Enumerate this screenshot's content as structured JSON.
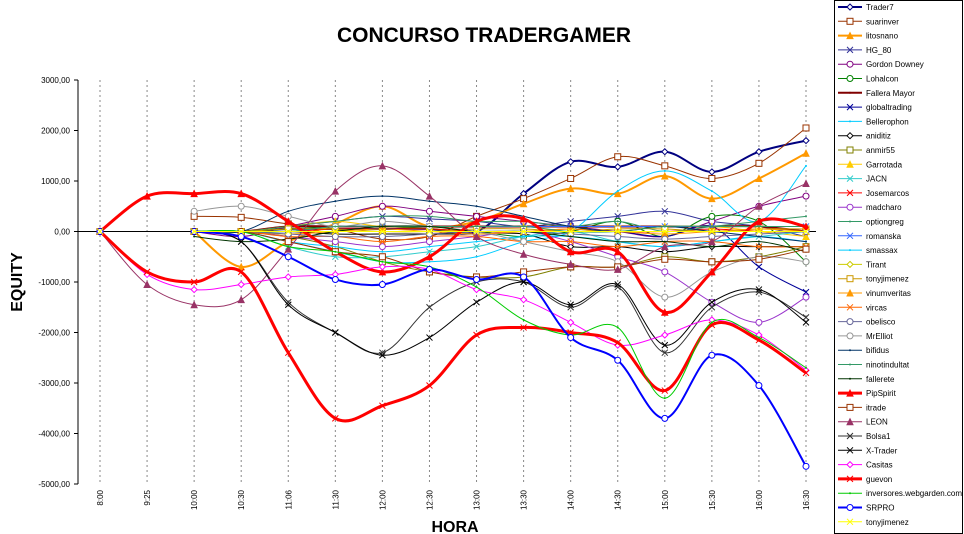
{
  "chart_data": {
    "type": "line",
    "title": "CONCURSO TRADERGAMER",
    "x_label": "HORA",
    "y_label": "EQUITY",
    "categories": [
      "8:00",
      "9:25",
      "10:00",
      "10:30",
      "11:06",
      "11:30",
      "12:00",
      "12:30",
      "13:00",
      "13:30",
      "14:00",
      "14:30",
      "15:00",
      "15:30",
      "16:00",
      "16:30"
    ],
    "ylim": [
      -5000,
      3000
    ],
    "yticks": [
      {
        "value": -5000,
        "label": "-5000,00"
      },
      {
        "value": -4000,
        "label": "-4000,00"
      },
      {
        "value": -3000,
        "label": "-3000,00"
      },
      {
        "value": -2000,
        "label": "-2000,00"
      },
      {
        "value": -1000,
        "label": "-1000,00"
      },
      {
        "value": 0,
        "label": "0,00"
      },
      {
        "value": 1000,
        "label": "1000,00"
      },
      {
        "value": 2000,
        "label": "2000,00"
      },
      {
        "value": 3000,
        "label": "3000,00"
      }
    ],
    "smooth": true,
    "series": [
      {
        "name": "Trader7",
        "color": "#000080",
        "marker": "diamond",
        "width": 2,
        "values": [
          0,
          null,
          0,
          0,
          50,
          50,
          50,
          50,
          0,
          750,
          1380,
          1280,
          1580,
          1180,
          1580,
          1800
        ]
      },
      {
        "name": "suarinver",
        "color": "#993300",
        "marker": "square",
        "width": 1,
        "values": [
          0,
          null,
          300,
          280,
          150,
          50,
          -150,
          -100,
          300,
          650,
          1050,
          1480,
          1300,
          1050,
          1350,
          2050
        ]
      },
      {
        "name": "litosnano",
        "color": "#ff9900",
        "marker": "triangle",
        "width": 2,
        "values": [
          0,
          null,
          0,
          -700,
          -200,
          150,
          500,
          100,
          200,
          550,
          850,
          750,
          1100,
          650,
          1050,
          1550
        ]
      },
      {
        "name": "HG_80",
        "color": "#333399",
        "marker": "x",
        "width": 1,
        "values": [
          0,
          null,
          0,
          0,
          100,
          200,
          300,
          250,
          200,
          100,
          200,
          300,
          400,
          200,
          100,
          -100
        ]
      },
      {
        "name": "Gordon Downey",
        "color": "#800080",
        "marker": "circle",
        "width": 1,
        "values": [
          0,
          null,
          0,
          -100,
          100,
          300,
          500,
          400,
          300,
          200,
          100,
          0,
          -100,
          200,
          500,
          700
        ]
      },
      {
        "name": "Lohalcon",
        "color": "#008000",
        "marker": "circle",
        "width": 1,
        "values": [
          0,
          null,
          0,
          0,
          50,
          100,
          100,
          50,
          0,
          -100,
          0,
          200,
          -100,
          300,
          200,
          -600
        ]
      },
      {
        "name": "Fallera Mayor",
        "color": "#800000",
        "marker": "none",
        "width": 2,
        "values": [
          0,
          null,
          0,
          0,
          100,
          100,
          100,
          100,
          100,
          100,
          100,
          100,
          100,
          100,
          100,
          0
        ]
      },
      {
        "name": "globaltrading",
        "color": "#000099",
        "marker": "x",
        "width": 1,
        "values": [
          0,
          null,
          0,
          0,
          0,
          0,
          0,
          0,
          0,
          0,
          0,
          0,
          -100,
          100,
          -700,
          -1200
        ]
      },
      {
        "name": "Bellerophon",
        "color": "#00ccff",
        "marker": "none",
        "width": 1,
        "values": [
          0,
          null,
          0,
          0,
          -200,
          -400,
          -600,
          -600,
          -500,
          -200,
          0,
          800,
          1200,
          800,
          200,
          1300
        ]
      },
      {
        "name": "aniditiz",
        "color": "#000000",
        "marker": "diamond",
        "width": 1,
        "values": [
          0,
          null,
          0,
          0,
          0,
          -50,
          -50,
          -50,
          -50,
          -50,
          -300,
          -300,
          -400,
          -300,
          -300,
          -300
        ]
      },
      {
        "name": "anmir55",
        "color": "#808000",
        "marker": "square",
        "width": 1,
        "values": [
          0,
          null,
          0,
          0,
          -100,
          -300,
          -600,
          -800,
          -900,
          -900,
          -700,
          -700,
          -500,
          -600,
          -500,
          -300
        ]
      },
      {
        "name": "Garrotada",
        "color": "#ffcc00",
        "marker": "triangle",
        "width": 1,
        "values": [
          0,
          null,
          0,
          0,
          100,
          200,
          100,
          100,
          100,
          100,
          100,
          100,
          100,
          100,
          0,
          -100
        ]
      },
      {
        "name": "JACN",
        "color": "#33cccc",
        "marker": "x",
        "width": 1,
        "values": [
          0,
          null,
          0,
          0,
          -300,
          -500,
          -500,
          -400,
          -300,
          -100,
          0,
          -200,
          -300,
          -200,
          -100,
          0
        ]
      },
      {
        "name": "Josemarcos",
        "color": "#ff0000",
        "marker": "x",
        "width": 1,
        "values": [
          0,
          null,
          0,
          0,
          0,
          50,
          50,
          50,
          0,
          0,
          50,
          0,
          0,
          50,
          0,
          0
        ]
      },
      {
        "name": "madcharo",
        "color": "#9933cc",
        "marker": "circle",
        "width": 1,
        "values": [
          0,
          null,
          0,
          0,
          -100,
          -200,
          -300,
          -200,
          -100,
          0,
          -200,
          -500,
          -800,
          -1400,
          -1800,
          -1300
        ]
      },
      {
        "name": "optiongreg",
        "color": "#339966",
        "marker": "none",
        "width": 1,
        "values": [
          0,
          null,
          0,
          0,
          100,
          200,
          300,
          300,
          200,
          200,
          100,
          200,
          0,
          100,
          200,
          300
        ]
      },
      {
        "name": "romanska",
        "color": "#3366ff",
        "marker": "x",
        "width": 1,
        "values": [
          0,
          null,
          0,
          0,
          0,
          100,
          100,
          100,
          100,
          100,
          100,
          100,
          100,
          100,
          100,
          100
        ]
      },
      {
        "name": "smassax",
        "color": "#00ccff",
        "marker": "none",
        "width": 1,
        "values": [
          0,
          null,
          0,
          0,
          -200,
          -300,
          -400,
          -300,
          -200,
          -100,
          -100,
          -200,
          -300,
          -200,
          -100,
          -200
        ]
      },
      {
        "name": "Tirant",
        "color": "#cccc00",
        "marker": "diamond",
        "width": 1,
        "values": [
          0,
          null,
          0,
          0,
          0,
          0,
          0,
          0,
          0,
          0,
          0,
          0,
          0,
          0,
          0,
          0
        ]
      },
      {
        "name": "tonyjimenez",
        "color": "#cc9900",
        "marker": "square",
        "width": 1,
        "values": [
          0,
          null,
          0,
          0,
          50,
          50,
          0,
          0,
          50,
          50,
          0,
          50,
          50,
          0,
          50,
          50
        ]
      },
      {
        "name": "vinumveritas",
        "color": "#ff9900",
        "marker": "triangle",
        "width": 1,
        "values": [
          0,
          null,
          0,
          0,
          -50,
          0,
          50,
          0,
          -50,
          0,
          50,
          0,
          -50,
          0,
          50,
          0
        ]
      },
      {
        "name": "vircas",
        "color": "#ff6600",
        "marker": "x",
        "width": 1,
        "values": [
          0,
          null,
          0,
          0,
          -100,
          -100,
          -200,
          -100,
          -100,
          -200,
          -200,
          -300,
          -200,
          -200,
          -300,
          -300
        ]
      },
      {
        "name": "obelisco",
        "color": "#666699",
        "marker": "circle",
        "width": 1,
        "values": [
          0,
          null,
          0,
          0,
          -50,
          -100,
          -100,
          -50,
          0,
          0,
          -50,
          -100,
          -150,
          -100,
          -50,
          0
        ]
      },
      {
        "name": "MrElliot",
        "color": "#969696",
        "marker": "circle",
        "width": 1,
        "values": [
          0,
          null,
          400,
          500,
          300,
          100,
          200,
          100,
          0,
          -200,
          -400,
          -600,
          -1300,
          -800,
          -500,
          -600
        ]
      },
      {
        "name": "bifidus",
        "color": "#003366",
        "marker": "none",
        "width": 1,
        "values": [
          0,
          null,
          0,
          0,
          400,
          600,
          700,
          600,
          500,
          300,
          100,
          0,
          100,
          0,
          -100,
          -200
        ]
      },
      {
        "name": "ninotindultat",
        "color": "#339966",
        "marker": "none",
        "width": 1,
        "values": [
          0,
          null,
          0,
          0,
          0,
          100,
          100,
          100,
          100,
          100,
          0,
          0,
          100,
          100,
          100,
          100
        ]
      },
      {
        "name": "fallerete",
        "color": "#003300",
        "marker": "none",
        "width": 1,
        "values": [
          0,
          null,
          -100,
          -200,
          -150,
          0,
          100,
          100,
          0,
          0,
          -100,
          -200,
          -200,
          -300,
          -200,
          -400
        ]
      },
      {
        "name": "PipSpirit",
        "color": "#ff0000",
        "marker": "triangle",
        "width": 3,
        "values": [
          0,
          700,
          750,
          750,
          200,
          -400,
          -800,
          -500,
          200,
          250,
          -400,
          -400,
          -1600,
          -800,
          200,
          100
        ]
      },
      {
        "name": "itrade",
        "color": "#993300",
        "marker": "square",
        "width": 1,
        "values": [
          0,
          null,
          0,
          0,
          -200,
          -400,
          -500,
          -800,
          -900,
          -800,
          -700,
          -700,
          -550,
          -600,
          -550,
          -350
        ]
      },
      {
        "name": "LEON",
        "color": "#993366",
        "marker": "triangle",
        "width": 1,
        "values": [
          0,
          -1050,
          -1450,
          -1350,
          -350,
          800,
          1300,
          700,
          -100,
          -450,
          -650,
          -750,
          -300,
          -200,
          500,
          950
        ]
      },
      {
        "name": "Bolsa1",
        "color": "#333333",
        "marker": "x",
        "width": 1,
        "values": [
          0,
          null,
          0,
          -200,
          -1400,
          -2000,
          -2400,
          -1500,
          -1000,
          -1000,
          -1500,
          -1100,
          -2400,
          -1500,
          -1200,
          -1700
        ]
      },
      {
        "name": "X-Trader",
        "color": "#000000",
        "marker": "x",
        "width": 1,
        "values": [
          0,
          null,
          0,
          -200,
          -1450,
          -2000,
          -2450,
          -2100,
          -1400,
          -1000,
          -1450,
          -1050,
          -2250,
          -1400,
          -1150,
          -1800
        ]
      },
      {
        "name": "Casitas",
        "color": "#ff00ff",
        "marker": "diamond",
        "width": 1,
        "values": [
          0,
          -850,
          -1150,
          -1050,
          -900,
          -850,
          -700,
          -750,
          -1150,
          -1350,
          -1800,
          -2250,
          -2050,
          -1750,
          -2050,
          -2750
        ]
      },
      {
        "name": "guevon",
        "color": "#ff0000",
        "marker": "x",
        "width": 3,
        "values": [
          0,
          -800,
          -1000,
          -800,
          -2400,
          -3700,
          -3450,
          -3050,
          -2050,
          -1900,
          -2000,
          -2200,
          -3150,
          -1850,
          -2150,
          -2800
        ]
      },
      {
        "name": "inversores.webgarden.com",
        "color": "#00cc00",
        "marker": "none",
        "width": 1,
        "values": [
          0,
          null,
          0,
          0,
          -300,
          -400,
          -600,
          -700,
          -1100,
          -1750,
          -2050,
          -1900,
          -3300,
          -1800,
          -2100,
          -2700
        ]
      },
      {
        "name": "SRPRO",
        "color": "#0000ff",
        "marker": "circle",
        "width": 2,
        "values": [
          0,
          null,
          0,
          -100,
          -500,
          -950,
          -1050,
          -750,
          -950,
          -900,
          -2100,
          -2550,
          -3700,
          -2450,
          -3050,
          -4650
        ]
      },
      {
        "name": "tonyjimenez",
        "color": "#ffff00",
        "marker": "x",
        "width": 1,
        "values": [
          0,
          null,
          0,
          0,
          0,
          0,
          0,
          0,
          0,
          0,
          0,
          0,
          0,
          0,
          0,
          0
        ]
      }
    ]
  }
}
